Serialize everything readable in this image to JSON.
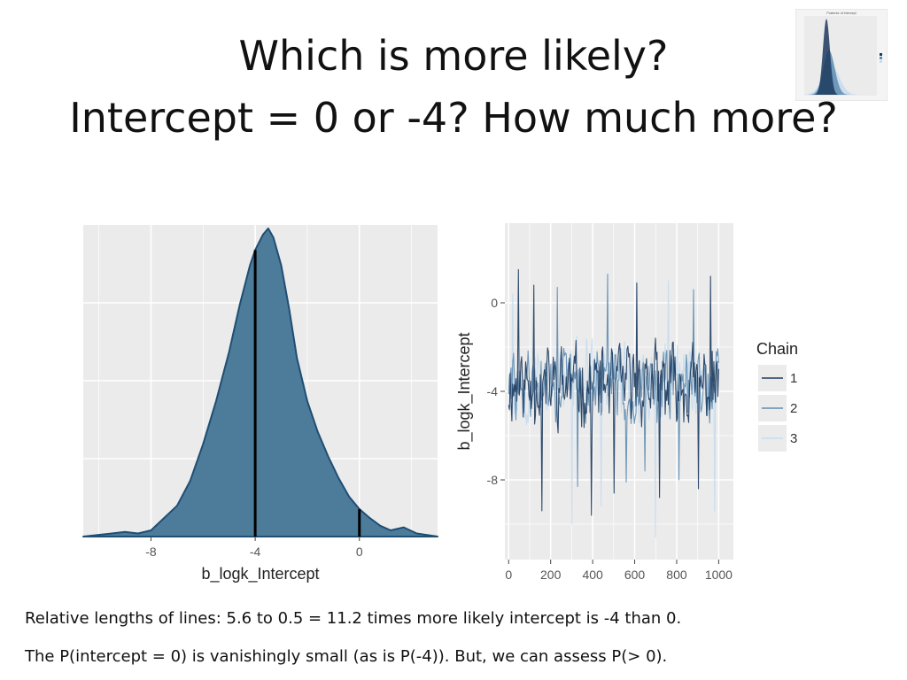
{
  "slide": {
    "title_line1": "Which is more likely?",
    "title_line2": "Intercept = 0 or -4? How much more?",
    "note1": "Relative lengths of lines: 5.6 to 0.5 = 11.2 times more likely intercept is -4 than 0.",
    "note2": "The P(intercept = 0) is vanishingly small (as is P(-4)).  But, we can assess P(> 0)."
  },
  "colors": {
    "panel_bg": "#ebebeb",
    "grid": "#ffffff",
    "density_fill": "#4d7c9a",
    "density_line": "#1f4e74",
    "chain1": "#1c3a5e",
    "chain2": "#5f8db0",
    "chain3": "#c8dcee"
  },
  "chart_data": [
    {
      "type": "area",
      "kind": "density",
      "xlabel": "b_logk_Intercept",
      "ylabel": "",
      "x_ticks": [
        -8,
        -4,
        0
      ],
      "x_tick_labels": [
        "-8",
        "-4",
        "0"
      ],
      "xlim": [
        -10.6,
        3.0
      ],
      "ylim": [
        0,
        1
      ],
      "x": [
        -10.6,
        -9.5,
        -9.0,
        -8.5,
        -8.0,
        -7.5,
        -7.0,
        -6.5,
        -6.0,
        -5.5,
        -5.0,
        -4.6,
        -4.2,
        -4.0,
        -3.7,
        -3.5,
        -3.3,
        -3.0,
        -2.7,
        -2.4,
        -2.0,
        -1.6,
        -1.2,
        -0.8,
        -0.4,
        0.0,
        0.4,
        0.8,
        1.2,
        1.7,
        2.2,
        3.0
      ],
      "y": [
        0.0,
        0.01,
        0.015,
        0.01,
        0.02,
        0.06,
        0.1,
        0.18,
        0.3,
        0.44,
        0.6,
        0.75,
        0.88,
        0.93,
        0.98,
        1.0,
        0.97,
        0.88,
        0.74,
        0.58,
        0.44,
        0.34,
        0.26,
        0.19,
        0.13,
        0.089,
        0.06,
        0.035,
        0.02,
        0.03,
        0.01,
        0.0
      ],
      "reference_lines": [
        {
          "x": -4,
          "height": 0.93,
          "relative_length": 5.6
        },
        {
          "x": 0,
          "height": 0.089,
          "relative_length": 0.5
        }
      ]
    },
    {
      "type": "line",
      "kind": "trace",
      "xlabel": "",
      "ylabel": "b_logk_Intercept",
      "x_ticks": [
        0,
        200,
        400,
        600,
        800,
        1000
      ],
      "x_tick_labels": [
        "0",
        "200",
        "400",
        "600",
        "800",
        "1000"
      ],
      "y_ticks": [
        0,
        -4,
        -8
      ],
      "y_tick_labels": [
        "0",
        "-4",
        "-8"
      ],
      "xlim": [
        -18,
        1070
      ],
      "ylim": [
        -11.6,
        3.6
      ],
      "legend": {
        "title": "Chain",
        "entries": [
          "1",
          "2",
          "3"
        ],
        "position": "right"
      },
      "series": [
        {
          "name": "1",
          "color_key": "chain1",
          "seed": 11,
          "center": -3.7,
          "spread": 1.35,
          "spikes": [
            [
              45,
              1.5
            ],
            [
              160,
              -9.4
            ],
            [
              395,
              -9.6
            ],
            [
              500,
              -8.6
            ],
            [
              720,
              -8.8
            ],
            [
              905,
              -8.4
            ],
            [
              120,
              0.8
            ],
            [
              610,
              0.9
            ],
            [
              960,
              1.2
            ]
          ]
        },
        {
          "name": "2",
          "color_key": "chain2",
          "seed": 29,
          "center": -3.8,
          "spread": 1.25,
          "spikes": [
            [
              230,
              0.7
            ],
            [
              330,
              -8.3
            ],
            [
              470,
              1.3
            ],
            [
              560,
              -8.1
            ],
            [
              650,
              -7.6
            ],
            [
              810,
              -8.0
            ],
            [
              880,
              0.6
            ]
          ]
        },
        {
          "name": "3",
          "color_key": "chain3",
          "seed": 53,
          "center": -3.6,
          "spread": 1.3,
          "spikes": [
            [
              20,
              0.4
            ],
            [
              300,
              -10.0
            ],
            [
              440,
              -9.2
            ],
            [
              700,
              -10.6
            ],
            [
              980,
              -9.4
            ],
            [
              760,
              1.0
            ]
          ]
        }
      ]
    },
    {
      "type": "area",
      "kind": "thumbnail-density",
      "title": "Posterior of Intercept",
      "series": [
        {
          "name": "1",
          "color_key": "chain1"
        },
        {
          "name": "2",
          "color_key": "chain2"
        },
        {
          "name": "3",
          "color_key": "chain3"
        }
      ]
    }
  ]
}
